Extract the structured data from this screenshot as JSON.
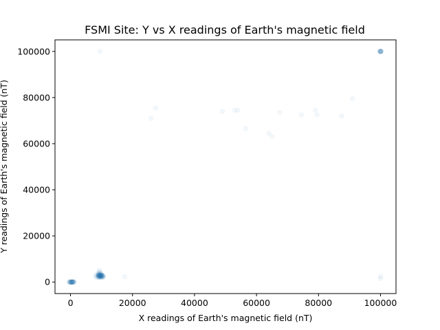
{
  "chart_data": {
    "type": "scatter",
    "title": "FSMI Site: Y vs X readings of Earth's magnetic field",
    "xlabel": "X readings of Earth's magnetic field (nT)",
    "ylabel": "Y readings of Earth's magnetic field (nT)",
    "xlim": [
      -5000,
      105000
    ],
    "ylim": [
      -5000,
      105000
    ],
    "xticks": [
      0,
      20000,
      40000,
      60000,
      80000,
      100000
    ],
    "yticks": [
      0,
      20000,
      40000,
      60000,
      80000,
      100000
    ],
    "xtick_labels": [
      "0",
      "20000",
      "40000",
      "60000",
      "80000",
      "100000"
    ],
    "ytick_labels": [
      "0",
      "20000",
      "40000",
      "60000",
      "80000",
      "100000"
    ],
    "grid": false,
    "series": [
      {
        "color": "#1f77b4",
        "marker_alpha": 0.05,
        "points": [
          [
            9500,
            100000
          ],
          [
            26000,
            71000
          ],
          [
            27500,
            75500
          ],
          [
            49000,
            74000
          ],
          [
            53000,
            74500
          ],
          [
            54000,
            74500
          ],
          [
            56500,
            66500
          ],
          [
            64000,
            64500
          ],
          [
            65000,
            63000
          ],
          [
            67500,
            73500
          ],
          [
            74500,
            72500
          ],
          [
            79000,
            74500
          ],
          [
            79500,
            72500
          ],
          [
            87500,
            72000
          ],
          [
            91000,
            79500
          ],
          [
            17500,
            2300
          ],
          [
            100000,
            2500
          ],
          [
            100000,
            1500
          ],
          [
            100000,
            100000
          ],
          [
            99800,
            100000
          ],
          [
            100200,
            100000
          ],
          [
            100000,
            99800
          ],
          [
            100000,
            100200
          ],
          [
            99900,
            99900
          ],
          [
            100100,
            100100
          ],
          [
            99900,
            100100
          ],
          [
            100100,
            99900
          ],
          [
            100000,
            100000
          ],
          [
            99700,
            100000
          ],
          [
            100300,
            100000
          ],
          [
            100000,
            100000
          ],
          [
            -500,
            0
          ],
          [
            -300,
            100
          ],
          [
            0,
            -100
          ],
          [
            200,
            50
          ],
          [
            400,
            -50
          ],
          [
            600,
            0
          ],
          [
            800,
            100
          ],
          [
            1000,
            -100
          ],
          [
            1200,
            0
          ],
          [
            -200,
            -200
          ],
          [
            100,
            200
          ],
          [
            300,
            -150
          ],
          [
            500,
            150
          ],
          [
            700,
            -100
          ],
          [
            900,
            50
          ],
          [
            1100,
            150
          ],
          [
            -400,
            100
          ],
          [
            0,
            0
          ],
          [
            250,
            0
          ],
          [
            750,
            0
          ],
          [
            -100,
            -50
          ],
          [
            150,
            -200
          ],
          [
            450,
            200
          ],
          [
            650,
            50
          ],
          [
            850,
            -150
          ],
          [
            1050,
            100
          ],
          [
            0,
            0
          ],
          [
            0,
            0
          ],
          [
            200,
            0
          ],
          [
            400,
            0
          ],
          [
            600,
            0
          ],
          [
            800,
            0
          ],
          [
            8500,
            2500
          ],
          [
            8700,
            3000
          ],
          [
            8800,
            3500
          ],
          [
            8900,
            2800
          ],
          [
            9000,
            2200
          ],
          [
            9100,
            3200
          ],
          [
            9200,
            2600
          ],
          [
            9300,
            2000
          ],
          [
            9400,
            3400
          ],
          [
            9500,
            2900
          ],
          [
            9600,
            2400
          ],
          [
            9700,
            3100
          ],
          [
            9800,
            2700
          ],
          [
            9900,
            2100
          ],
          [
            10000,
            3300
          ],
          [
            10100,
            2500
          ],
          [
            10200,
            2800
          ],
          [
            10300,
            2300
          ],
          [
            10400,
            2600
          ],
          [
            10500,
            2000
          ],
          [
            8600,
            2000
          ],
          [
            9000,
            3800
          ],
          [
            9250,
            1900
          ],
          [
            9450,
            3700
          ],
          [
            9650,
            2200
          ],
          [
            9850,
            3600
          ],
          [
            10050,
            1800
          ],
          [
            10250,
            3000
          ],
          [
            10450,
            2400
          ],
          [
            9150,
            2700
          ],
          [
            9350,
            2450
          ],
          [
            9550,
            3150
          ],
          [
            9750,
            2650
          ],
          [
            9950,
            2350
          ],
          [
            10150,
            2950
          ],
          [
            8950,
            3250
          ],
          [
            9050,
            2550
          ],
          [
            9650,
            2850
          ],
          [
            10350,
            2750
          ],
          [
            9450,
            2250
          ],
          [
            9200,
            4500
          ],
          [
            9800,
            4000
          ],
          [
            8000,
            3000
          ],
          [
            8200,
            2200
          ],
          [
            10600,
            2600
          ],
          [
            10700,
            2300
          ],
          [
            9400,
            5000
          ],
          [
            9300,
            4200
          ],
          [
            9000,
            3000
          ],
          [
            9200,
            3000
          ],
          [
            9400,
            3000
          ],
          [
            9600,
            3000
          ],
          [
            9800,
            3000
          ],
          [
            10000,
            3000
          ],
          [
            9000,
            2500
          ],
          [
            9200,
            2500
          ],
          [
            9400,
            2500
          ],
          [
            9600,
            2500
          ],
          [
            9800,
            2500
          ],
          [
            10000,
            2500
          ],
          [
            9100,
            2800
          ],
          [
            9300,
            2800
          ],
          [
            9500,
            2800
          ],
          [
            9700,
            2800
          ],
          [
            9900,
            2800
          ],
          [
            10100,
            2800
          ]
        ]
      }
    ]
  }
}
